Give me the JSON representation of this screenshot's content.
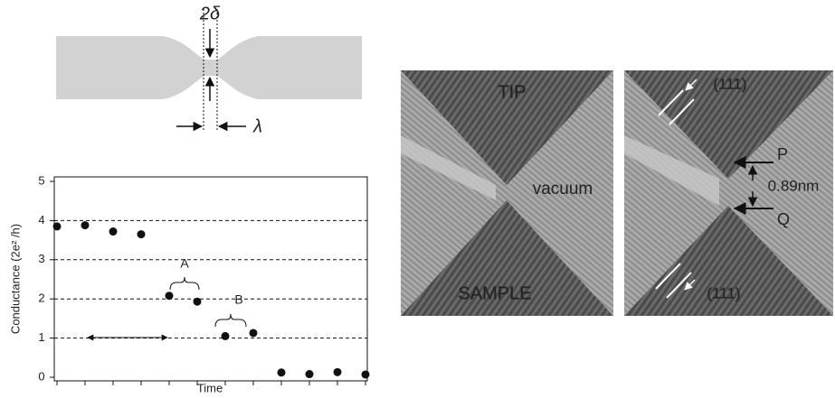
{
  "diagram": {
    "gap_label": "2δ",
    "width_label": "λ"
  },
  "chart_data": {
    "type": "scatter",
    "x_label": "Time",
    "y_label": "Conductance (2e² /h)",
    "categories": [
      null,
      null,
      null,
      null,
      null,
      null,
      null,
      null,
      null,
      null,
      null,
      null
    ],
    "values": [
      3.85,
      3.88,
      3.72,
      3.65,
      2.08,
      1.93,
      1.05,
      1.13,
      0.12,
      0.08,
      0.13,
      0.07
    ],
    "color": "#111111",
    "ylim": [
      0,
      5
    ],
    "yticks": [
      0,
      1,
      2,
      3,
      4,
      5
    ],
    "grid_dashed": [
      1,
      2,
      3,
      4
    ],
    "annotations": [
      "A",
      "B"
    ]
  },
  "micrograph": {
    "tip": "TIP",
    "vacuum": "vacuum",
    "sample": "SAMPLE",
    "plane_top": "(111)",
    "plane_bottom": "(111)",
    "p": "P",
    "gap": "0.89nm",
    "q": "Q"
  }
}
